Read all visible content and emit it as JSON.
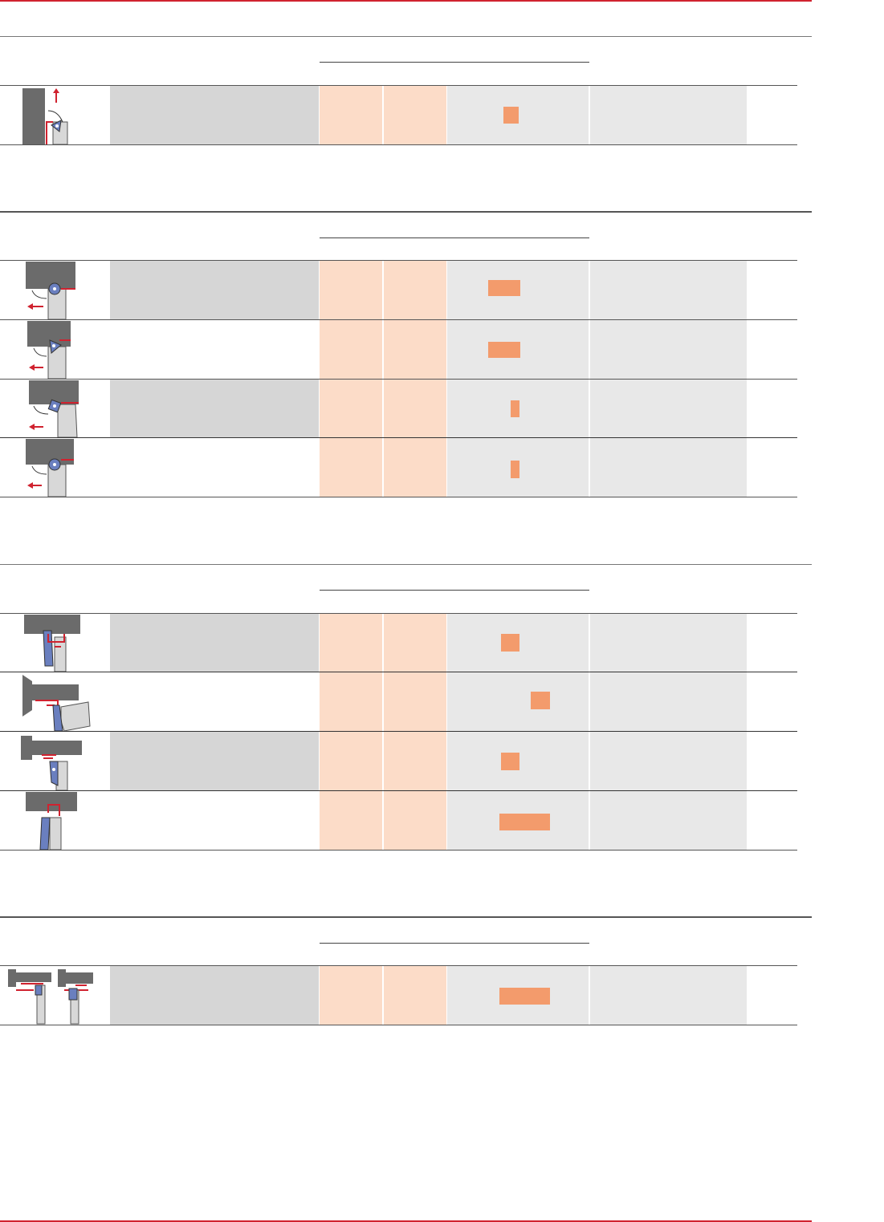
{
  "colors": {
    "brand_red": "#d0222f",
    "orange_bar": "#f39b6c",
    "peach_fill": "#fcdcc8",
    "light_gray": "#e8e8e8",
    "mid_gray": "#d6d6d6",
    "blade": "#6a7fbf",
    "tool_gray": "#6b6b6b"
  },
  "sections": [
    {
      "rows": [
        {
          "icon": "facing-up-icon",
          "shaded": true,
          "bar_start": 0.4,
          "bar_end": 0.51
        }
      ]
    },
    {
      "rows": [
        {
          "icon": "turning-trigon-icon",
          "shaded": true,
          "bar_start": 0.29,
          "bar_end": 0.52
        },
        {
          "icon": "turning-triangle-icon",
          "shaded": false,
          "bar_start": 0.29,
          "bar_end": 0.52
        },
        {
          "icon": "turning-square-icon",
          "shaded": true,
          "bar_start": 0.45,
          "bar_end": 0.51
        },
        {
          "icon": "turning-round-icon",
          "shaded": false,
          "bar_start": 0.45,
          "bar_end": 0.51
        }
      ]
    },
    {
      "rows": [
        {
          "icon": "grooving-blade-icon",
          "shaded": true,
          "bar_start": 0.38,
          "bar_end": 0.51
        },
        {
          "icon": "face-grooving-icon",
          "shaded": false,
          "bar_start": 0.59,
          "bar_end": 0.72
        },
        {
          "icon": "shaft-grooving-icon",
          "shaded": true,
          "bar_start": 0.38,
          "bar_end": 0.51
        },
        {
          "icon": "parting-off-icon",
          "shaded": false,
          "bar_start": 0.37,
          "bar_end": 0.73
        }
      ]
    },
    {
      "rows": [
        {
          "icon": "multi-directional-icon",
          "shaded": true,
          "bar_start": 0.37,
          "bar_end": 0.73
        }
      ]
    }
  ]
}
